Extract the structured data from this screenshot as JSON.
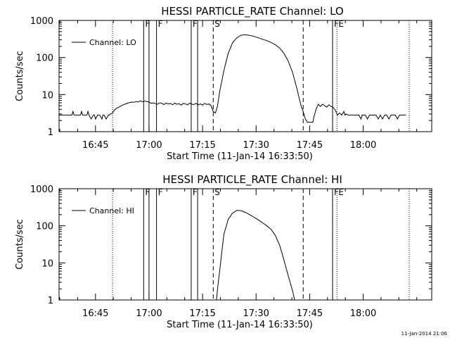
{
  "footer_stamp": "11-Jan-2014 21:06",
  "chart_data": [
    {
      "type": "line",
      "title": "HESSI PARTICLE_RATE Channel: LO",
      "xlabel": "Start Time (11-Jan-14 16:33:50)",
      "ylabel": "Counts/sec",
      "x_unit": "minutes",
      "xlim": [
        16.58,
        18.32
      ],
      "ylim": [
        1,
        1000
      ],
      "y_scale": "log",
      "grid": false,
      "legend_position": "top-left",
      "x_ticks": [
        {
          "label": "16:45",
          "x": 16.75
        },
        {
          "label": "17:00",
          "x": 17.0
        },
        {
          "label": "17:15",
          "x": 17.25
        },
        {
          "label": "17:30",
          "x": 17.5
        },
        {
          "label": "17:45",
          "x": 17.75
        },
        {
          "label": "18:00",
          "x": 18.0
        }
      ],
      "y_ticks": [
        {
          "label": "1",
          "y": 1
        },
        {
          "label": "10",
          "y": 10
        },
        {
          "label": "100",
          "y": 100
        },
        {
          "label": "1000",
          "y": 1000
        }
      ],
      "markers": [
        {
          "x": 16.83,
          "style": "dotted",
          "label": ""
        },
        {
          "x": 16.975,
          "style": "solid",
          "label": "F"
        },
        {
          "x": 17.0,
          "style": "solid",
          "label": ""
        },
        {
          "x": 17.035,
          "style": "solid",
          "label": "F"
        },
        {
          "x": 17.197,
          "style": "solid",
          "label": "F"
        },
        {
          "x": 17.227,
          "style": "solid",
          "label": ""
        },
        {
          "x": 17.3,
          "style": "dashed",
          "label": "S"
        },
        {
          "x": 17.72,
          "style": "dashed",
          "label": ""
        },
        {
          "x": 17.857,
          "style": "solid",
          "label": "F"
        },
        {
          "x": 17.878,
          "style": "dotted",
          "label": "E"
        },
        {
          "x": 18.215,
          "style": "dotted",
          "label": ""
        }
      ],
      "series": [
        {
          "name": "Channel: LO",
          "color": "#000000",
          "x": [
            16.58,
            16.6,
            16.61,
            16.62,
            16.63,
            16.64,
            16.645,
            16.65,
            16.66,
            16.67,
            16.68,
            16.685,
            16.69,
            16.7,
            16.71,
            16.715,
            16.72,
            16.73,
            16.74,
            16.745,
            16.75,
            16.76,
            16.77,
            16.78,
            16.785,
            16.79,
            16.8,
            16.81,
            16.815,
            16.82,
            16.83,
            16.84,
            16.85,
            16.86,
            16.87,
            16.88,
            16.89,
            16.9,
            16.91,
            16.92,
            16.93,
            16.94,
            16.95,
            16.96,
            16.97,
            16.98,
            16.99,
            17.0,
            17.01,
            17.02,
            17.03,
            17.04,
            17.05,
            17.06,
            17.07,
            17.08,
            17.09,
            17.1,
            17.11,
            17.12,
            17.13,
            17.14,
            17.15,
            17.16,
            17.17,
            17.18,
            17.19,
            17.2,
            17.21,
            17.22,
            17.23,
            17.24,
            17.25,
            17.26,
            17.27,
            17.28,
            17.29,
            17.3,
            17.31,
            17.32,
            17.33,
            17.35,
            17.37,
            17.39,
            17.41,
            17.43,
            17.45,
            17.47,
            17.49,
            17.51,
            17.53,
            17.55,
            17.57,
            17.59,
            17.61,
            17.63,
            17.65,
            17.67,
            17.69,
            17.71,
            17.72,
            17.73,
            17.74,
            17.75,
            17.76,
            17.765,
            17.77,
            17.78,
            17.79,
            17.8,
            17.81,
            17.82,
            17.83,
            17.84,
            17.85,
            17.86,
            17.87,
            17.88,
            17.89,
            17.9,
            17.91,
            17.915,
            17.92,
            17.93,
            17.94,
            17.95,
            17.955,
            17.96,
            17.97,
            17.98,
            17.99,
            17.995,
            18.0,
            18.01,
            18.02,
            18.03,
            18.04,
            18.045,
            18.05,
            18.06,
            18.07,
            18.08,
            18.09,
            18.1,
            18.11,
            18.12,
            18.13,
            18.14,
            18.15,
            18.16,
            18.17,
            18.18,
            18.19,
            18.2
          ],
          "y": [
            2.8,
            2.8,
            2.8,
            2.8,
            2.8,
            2.8,
            3.5,
            2.8,
            2.8,
            2.8,
            2.8,
            3.5,
            2.8,
            2.8,
            2.8,
            3.5,
            2.8,
            2.2,
            2.8,
            2.8,
            2.2,
            2.8,
            2.8,
            2.2,
            2.8,
            2.8,
            2.2,
            2.8,
            2.8,
            3.0,
            3.2,
            3.9,
            4.3,
            4.6,
            5.0,
            5.3,
            5.6,
            5.9,
            6.1,
            6.3,
            6.2,
            6.5,
            6.3,
            6.8,
            6.4,
            6.7,
            6.5,
            6.3,
            5.8,
            6.0,
            5.7,
            5.5,
            6.0,
            5.8,
            5.4,
            5.9,
            5.6,
            5.8,
            5.3,
            5.9,
            5.5,
            5.7,
            5.2,
            5.8,
            5.6,
            5.3,
            5.9,
            5.5,
            5.4,
            5.8,
            5.3,
            5.6,
            5.2,
            5.8,
            5.4,
            5.6,
            5.0,
            3.5,
            3.2,
            5.0,
            12.0,
            45.0,
            130.0,
            250.0,
            340.0,
            400.0,
            410.0,
            395.0,
            370.0,
            340.0,
            310.0,
            285.0,
            255.0,
            220.0,
            180.0,
            130.0,
            80.0,
            40.0,
            15.0,
            5.0,
            3.5,
            2.2,
            1.8,
            1.8,
            1.8,
            1.8,
            2.5,
            4.0,
            5.5,
            4.8,
            5.5,
            5.0,
            4.6,
            5.3,
            4.8,
            4.5,
            3.8,
            2.8,
            3.2,
            2.8,
            3.5,
            2.8,
            3.0,
            2.8,
            2.8,
            2.8,
            2.8,
            2.8,
            2.8,
            2.8,
            2.2,
            2.8,
            2.8,
            2.8,
            2.2,
            2.8,
            2.8,
            2.8,
            2.8,
            2.8,
            2.2,
            2.8,
            2.2,
            2.8,
            2.8,
            2.2,
            2.8,
            2.8,
            2.8,
            2.2,
            2.8,
            2.8,
            2.8,
            2.8
          ]
        }
      ]
    },
    {
      "type": "line",
      "title": "HESSI PARTICLE_RATE Channel: HI",
      "xlabel": "Start Time (11-Jan-14 16:33:50)",
      "ylabel": "Counts/sec",
      "x_unit": "minutes",
      "xlim": [
        16.58,
        18.32
      ],
      "ylim": [
        1,
        1000
      ],
      "y_scale": "log",
      "grid": false,
      "legend_position": "top-left",
      "x_ticks": [
        {
          "label": "16:45",
          "x": 16.75
        },
        {
          "label": "17:00",
          "x": 17.0
        },
        {
          "label": "17:15",
          "x": 17.25
        },
        {
          "label": "17:30",
          "x": 17.5
        },
        {
          "label": "17:45",
          "x": 17.75
        },
        {
          "label": "18:00",
          "x": 18.0
        }
      ],
      "y_ticks": [
        {
          "label": "1",
          "y": 1
        },
        {
          "label": "10",
          "y": 10
        },
        {
          "label": "100",
          "y": 100
        },
        {
          "label": "1000",
          "y": 1000
        }
      ],
      "markers": [
        {
          "x": 16.83,
          "style": "dotted",
          "label": ""
        },
        {
          "x": 16.975,
          "style": "solid",
          "label": "F"
        },
        {
          "x": 17.0,
          "style": "solid",
          "label": ""
        },
        {
          "x": 17.035,
          "style": "solid",
          "label": "F"
        },
        {
          "x": 17.197,
          "style": "solid",
          "label": "F"
        },
        {
          "x": 17.227,
          "style": "solid",
          "label": ""
        },
        {
          "x": 17.3,
          "style": "dashed",
          "label": "S"
        },
        {
          "x": 17.72,
          "style": "dashed",
          "label": ""
        },
        {
          "x": 17.857,
          "style": "solid",
          "label": "F"
        },
        {
          "x": 17.878,
          "style": "dotted",
          "label": "E"
        },
        {
          "x": 18.215,
          "style": "dotted",
          "label": ""
        }
      ],
      "series": [
        {
          "name": "Channel: HI",
          "color": "#000000",
          "x": [
            17.315,
            17.32,
            17.33,
            17.34,
            17.35,
            17.37,
            17.39,
            17.41,
            17.43,
            17.45,
            17.47,
            17.49,
            17.51,
            17.53,
            17.55,
            17.57,
            17.59,
            17.61,
            17.63,
            17.65,
            17.67,
            17.68
          ],
          "y": [
            1.0,
            2.0,
            6.0,
            20.0,
            60.0,
            150.0,
            220.0,
            260.0,
            255.0,
            230.0,
            200.0,
            170.0,
            145.0,
            120.0,
            100.0,
            80.0,
            55.0,
            30.0,
            12.0,
            4.5,
            1.8,
            1.0
          ]
        }
      ]
    }
  ]
}
